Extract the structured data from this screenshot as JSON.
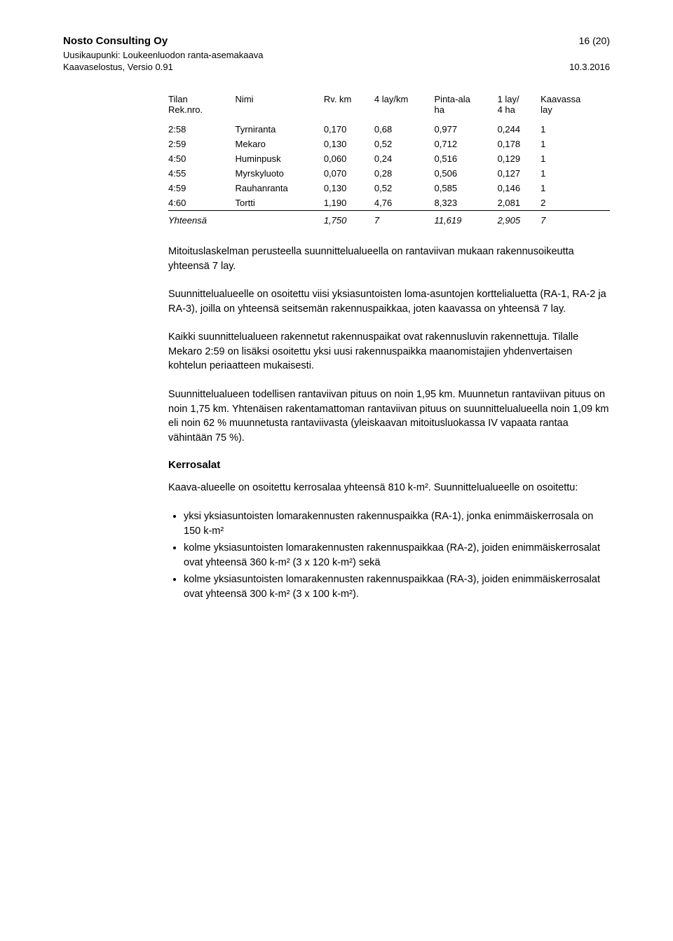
{
  "header": {
    "company": "Nosto Consulting Oy",
    "page_label": "16 (20)",
    "project_line": "Uusikaupunki: Loukeenluodon ranta-asemakaava",
    "doc_version": "Kaavaselostus, Versio 0.91",
    "date": "10.3.2016"
  },
  "table": {
    "columns": [
      "Tilan Rek.nro.",
      "Nimi",
      "Rv. km",
      "4 lay/km",
      "Pinta-ala ha",
      "1 lay/ 4 ha",
      "Kaavassa lay"
    ],
    "col_h1": [
      "Tilan",
      "Nimi",
      "Rv. km",
      "4 lay/km",
      "Pinta-ala",
      "1 lay/",
      "Kaavassa"
    ],
    "col_h2": [
      "Rek.nro.",
      "",
      "",
      "",
      "ha",
      "4 ha",
      "lay"
    ],
    "rows": [
      [
        "2:58",
        "Tyrniranta",
        "0,170",
        "0,68",
        "0,977",
        "0,244",
        "1"
      ],
      [
        "2:59",
        "Mekaro",
        "0,130",
        "0,52",
        "0,712",
        "0,178",
        "1"
      ],
      [
        "4:50",
        "Huminpusk",
        "0,060",
        "0,24",
        "0,516",
        "0,129",
        "1"
      ],
      [
        "4:55",
        "Myrskyluoto",
        "0,070",
        "0,28",
        "0,506",
        "0,127",
        "1"
      ],
      [
        "4:59",
        "Rauhanranta",
        "0,130",
        "0,52",
        "0,585",
        "0,146",
        "1"
      ],
      [
        "4:60",
        "Tortti",
        "1,190",
        "4,76",
        "8,323",
        "2,081",
        "2"
      ]
    ],
    "totals": [
      "Yhteensä",
      "",
      "1,750",
      "7",
      "11,619",
      "2,905",
      "7"
    ]
  },
  "paragraphs": {
    "p1": "Mitoituslaskelman perusteella suunnittelualueella on rantaviivan mukaan rakennusoikeutta yhteensä 7 lay.",
    "p2": "Suunnittelualueelle on osoitettu viisi yksiasuntoisten loma-asuntojen korttelialuetta (RA-1, RA-2 ja RA-3), joilla on yhteensä seitsemän rakennuspaikkaa, joten kaavassa on yhteensä 7 lay.",
    "p3": "Kaikki suunnittelualueen rakennetut rakennuspaikat ovat rakennusluvin rakennettuja. Tilalle Mekaro 2:59 on lisäksi osoitettu yksi uusi rakennuspaikka maanomistajien yhdenvertaisen kohtelun periaatteen mukaisesti.",
    "p4": "Suunnittelualueen todellisen rantaviivan pituus on noin 1,95 km. Muunnetun rantaviivan pituus on noin 1,75 km. Yhtenäisen rakentamattoman rantaviivan pituus on suunnittelualueella noin 1,09 km eli noin 62 % muunnetusta rantaviivasta (yleiskaavan mitoitusluokassa IV vapaata rantaa vähintään 75 %)."
  },
  "section": {
    "title": "Kerrosalat",
    "intro": "Kaava-alueelle on osoitettu kerrosalaa yhteensä 810 k-m². Suunnittelualueelle on osoitettu:",
    "bullets": [
      "yksi yksiasuntoisten lomarakennusten rakennuspaikka (RA-1), jonka enimmäiskerrosala on 150 k-m²",
      "kolme yksiasuntoisten lomarakennusten rakennuspaikkaa (RA-2), joiden enimmäiskerrosalat ovat yhteensä 360 k-m² (3 x 120 k-m²) sekä",
      "kolme yksiasuntoisten lomarakennusten rakennuspaikkaa (RA-3), joiden enimmäiskerrosalat ovat yhteensä 300 k-m² (3 x 100 k-m²)."
    ]
  },
  "style": {
    "background": "#ffffff",
    "text_color": "#000000",
    "body_fontsize": 14.5,
    "table_fontsize": 13,
    "line_height": 1.42
  }
}
